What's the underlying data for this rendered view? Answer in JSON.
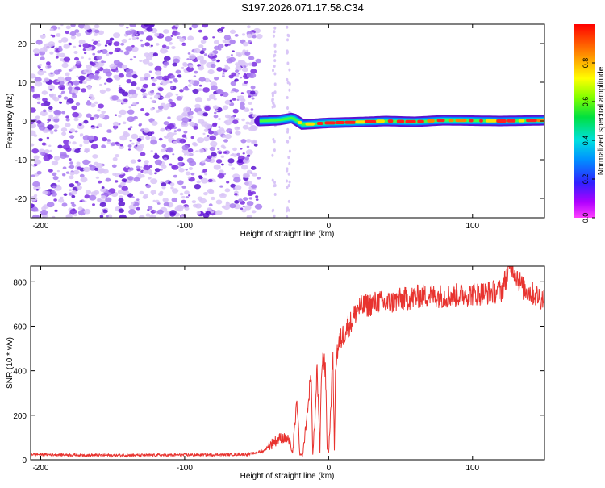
{
  "title": "S197.2026.071.17.58.C34",
  "colors": {
    "line": "#e8332f",
    "dots": "#7a2de0",
    "frame": "#000000"
  },
  "chart_data": [
    {
      "type": "heatmap",
      "title": "S197.2026.071.17.58.C34",
      "xlabel": "Height of straight line (km)",
      "ylabel": "Frequency (Hz)",
      "xlim": [
        -207,
        150
      ],
      "ylim": [
        -25,
        25
      ],
      "x_ticks": [
        -200,
        -100,
        0,
        100
      ],
      "y_ticks": [
        -20,
        -10,
        0,
        10,
        20
      ],
      "colorbar": {
        "label": "Normalized spectral amplitude",
        "range": [
          0,
          1
        ],
        "ticks": [
          "0.0",
          "0.2",
          "0.4",
          "0.6",
          "0.8"
        ]
      },
      "noise_region_x": [
        -207,
        -48
      ],
      "signal_band": [
        {
          "x": -48,
          "f": 0.0,
          "amp": 0.3
        },
        {
          "x": -35,
          "f": 0.2,
          "amp": 0.45
        },
        {
          "x": -25,
          "f": 0.8,
          "amp": 0.55
        },
        {
          "x": -18,
          "f": -0.9,
          "amp": 0.5
        },
        {
          "x": 0,
          "f": -0.5,
          "amp": 0.75
        },
        {
          "x": 20,
          "f": -0.3,
          "amp": 0.8
        },
        {
          "x": 40,
          "f": 0.0,
          "amp": 0.85
        },
        {
          "x": 60,
          "f": -0.2,
          "amp": 0.9
        },
        {
          "x": 80,
          "f": 0.2,
          "amp": 0.92
        },
        {
          "x": 100,
          "f": 0.1,
          "amp": 0.95
        },
        {
          "x": 120,
          "f": 0.0,
          "amp": 0.93
        },
        {
          "x": 150,
          "f": 0.2,
          "amp": 0.9
        }
      ]
    },
    {
      "type": "line",
      "xlabel": "Height of straight line (km)",
      "ylabel": "SNR (10 * v/v)",
      "xlim": [
        -207,
        150
      ],
      "ylim": [
        0,
        870
      ],
      "x_ticks": [
        -200,
        -100,
        0,
        100
      ],
      "y_ticks": [
        0,
        200,
        400,
        600,
        800
      ],
      "series": [
        {
          "name": "SNR",
          "x": [
            -207,
            -180,
            -150,
            -120,
            -90,
            -70,
            -55,
            -45,
            -38,
            -33,
            -28,
            -25,
            -22,
            -20,
            -18,
            -12,
            -11,
            -9,
            -8,
            -6,
            -5,
            -3,
            -2,
            -1,
            0,
            2,
            3,
            4,
            5,
            7,
            10,
            13,
            16,
            20,
            25,
            30,
            35,
            40,
            50,
            60,
            70,
            80,
            90,
            100,
            110,
            120,
            127,
            135,
            150
          ],
          "y": [
            25,
            22,
            20,
            21,
            22,
            23,
            25,
            40,
            80,
            100,
            90,
            30,
            270,
            20,
            20,
            380,
            20,
            240,
            420,
            30,
            400,
            470,
            360,
            60,
            30,
            300,
            480,
            40,
            450,
            520,
            560,
            600,
            620,
            680,
            690,
            700,
            710,
            700,
            720,
            730,
            740,
            735,
            740,
            745,
            750,
            760,
            880,
            770,
            720
          ]
        }
      ]
    }
  ]
}
